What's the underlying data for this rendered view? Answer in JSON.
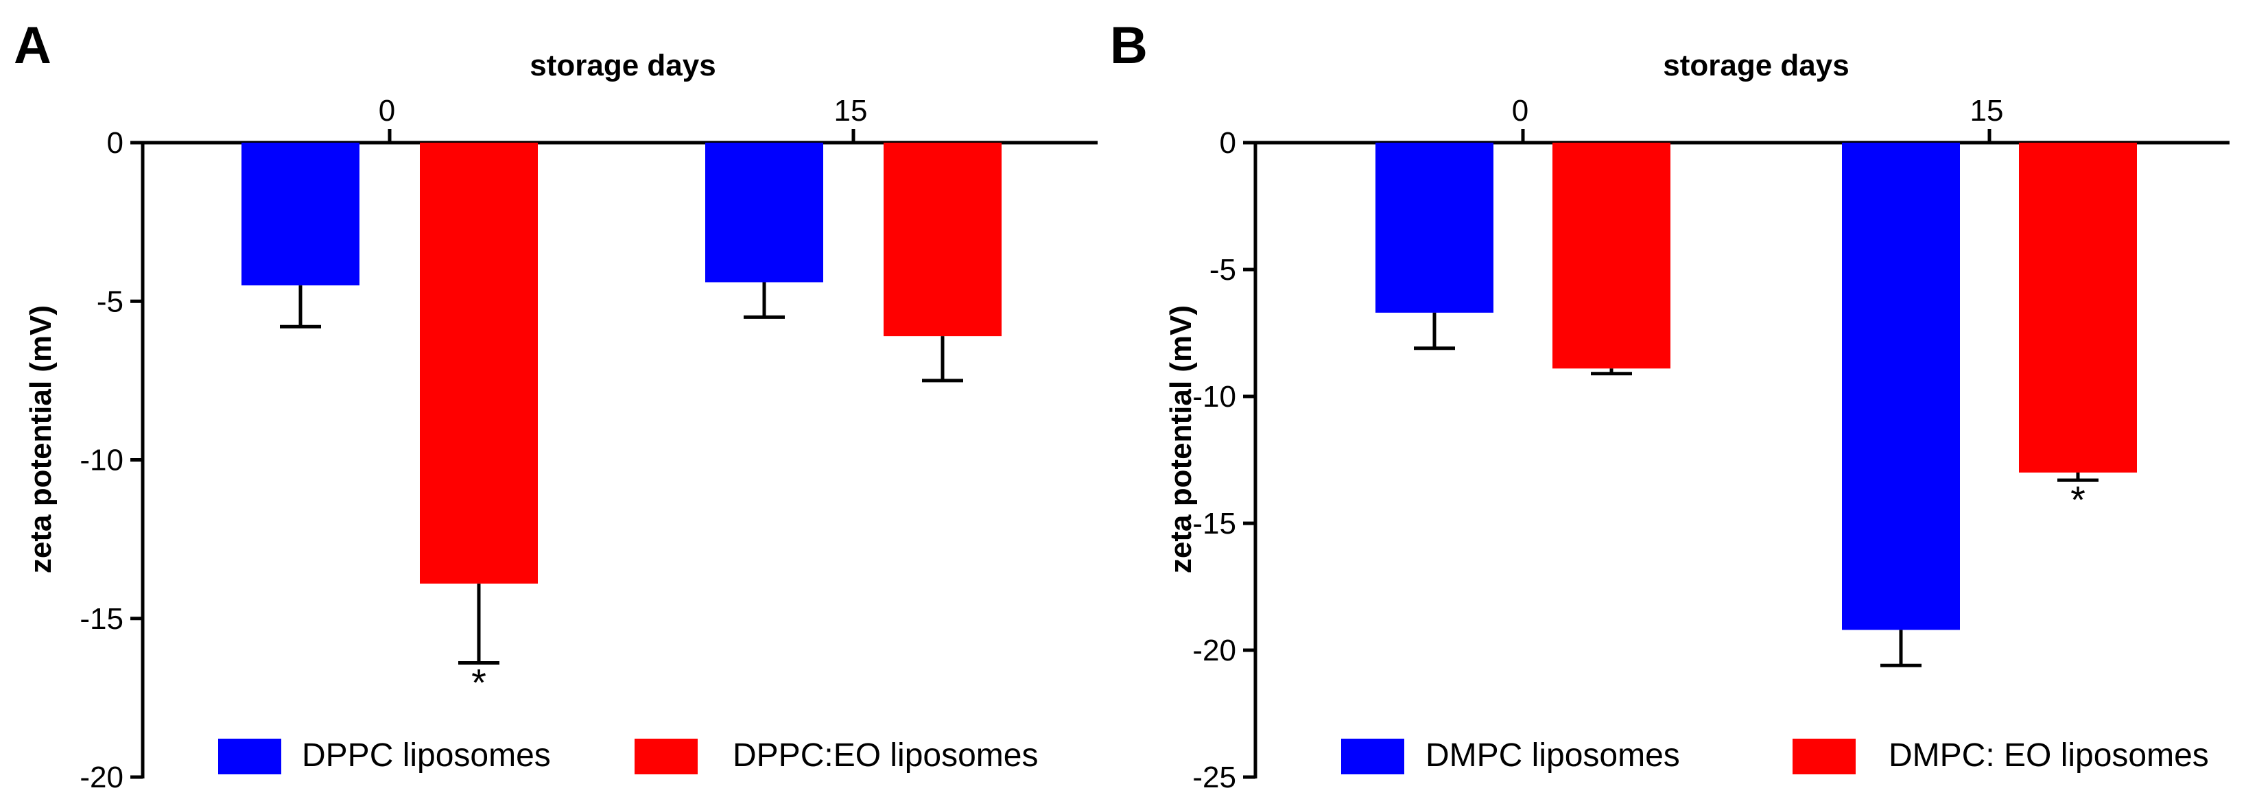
{
  "chart_data": [
    {
      "panel": "A",
      "type": "bar",
      "xlabel": "storage days",
      "ylabel": "zeta potential (mV)",
      "x_ticks": [
        "0",
        "15"
      ],
      "categories": [
        "0",
        "15"
      ],
      "ylim": [
        -20,
        0
      ],
      "y_ticks": [
        0,
        -5,
        -10,
        -15,
        -20
      ],
      "y_tick_labels": [
        "0",
        "-5",
        "-10",
        "-15",
        "-20"
      ],
      "legend_position": "bottom",
      "series": [
        {
          "name": "DPPC liposomes",
          "color": "#0000ff",
          "values": [
            -4.5,
            -4.4
          ],
          "errors": [
            1.3,
            1.1
          ],
          "significance": [
            "",
            ""
          ]
        },
        {
          "name": "DPPC:EO liposomes",
          "color": "#ff0000",
          "values": [
            -13.9,
            -6.1
          ],
          "errors": [
            2.5,
            1.4
          ],
          "significance": [
            "*",
            ""
          ]
        }
      ]
    },
    {
      "panel": "B",
      "type": "bar",
      "xlabel": "storage days",
      "ylabel": "zeta potential (mV)",
      "x_ticks": [
        "0",
        "15"
      ],
      "categories": [
        "0",
        "15"
      ],
      "ylim": [
        -25,
        0
      ],
      "y_ticks": [
        0,
        -5,
        -10,
        -15,
        -20,
        -25
      ],
      "y_tick_labels": [
        "0",
        "-5",
        "-10",
        "-15",
        "-20",
        "-25"
      ],
      "legend_position": "bottom",
      "series": [
        {
          "name": "DMPC liposomes",
          "color": "#0000ff",
          "values": [
            -6.7,
            -19.2
          ],
          "errors": [
            1.4,
            1.4
          ],
          "significance": [
            "",
            ""
          ]
        },
        {
          "name": "DMPC: EO liposomes",
          "color": "#ff0000",
          "values": [
            -8.9,
            -13.0
          ],
          "errors": [
            0.2,
            0.3
          ],
          "significance": [
            "",
            "*"
          ]
        }
      ]
    }
  ]
}
